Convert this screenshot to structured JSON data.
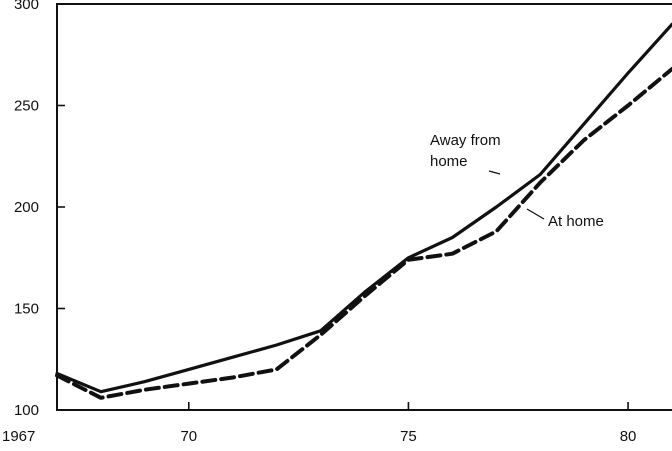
{
  "chart_data": {
    "type": "line",
    "title": "",
    "xlabel": "",
    "ylabel": "",
    "xlim": [
      1967,
      1981
    ],
    "ylim": [
      100,
      300
    ],
    "x_ticks": [
      {
        "value": 1967,
        "label": "1967"
      },
      {
        "value": 1970,
        "label": "70"
      },
      {
        "value": 1975,
        "label": "75"
      },
      {
        "value": 1980,
        "label": "80"
      }
    ],
    "y_ticks": [
      {
        "value": 100,
        "label": "100"
      },
      {
        "value": 150,
        "label": "150"
      },
      {
        "value": 200,
        "label": "200"
      },
      {
        "value": 250,
        "label": "250"
      },
      {
        "value": 300,
        "label": "300"
      }
    ],
    "grid": false,
    "legend": "none",
    "series": [
      {
        "name": "Away from home",
        "style": "solid",
        "label_lines": [
          "Away from",
          "home"
        ],
        "x": [
          1967,
          1968,
          1969,
          1970,
          1971,
          1972,
          1973,
          1974,
          1975,
          1976,
          1977,
          1978,
          1979,
          1980,
          1981
        ],
        "y": [
          118,
          109,
          114,
          120,
          126,
          132,
          139,
          158,
          175,
          185,
          200,
          216,
          241,
          266,
          290
        ]
      },
      {
        "name": "At home",
        "style": "dashed",
        "label_lines": [
          "At home"
        ],
        "x": [
          1967,
          1968,
          1969,
          1970,
          1971,
          1972,
          1973,
          1974,
          1975,
          1976,
          1977,
          1978,
          1979,
          1980,
          1981
        ],
        "y": [
          117,
          106,
          110,
          113,
          116,
          120,
          137,
          156,
          174,
          177,
          188,
          212,
          233,
          250,
          268
        ]
      }
    ]
  }
}
